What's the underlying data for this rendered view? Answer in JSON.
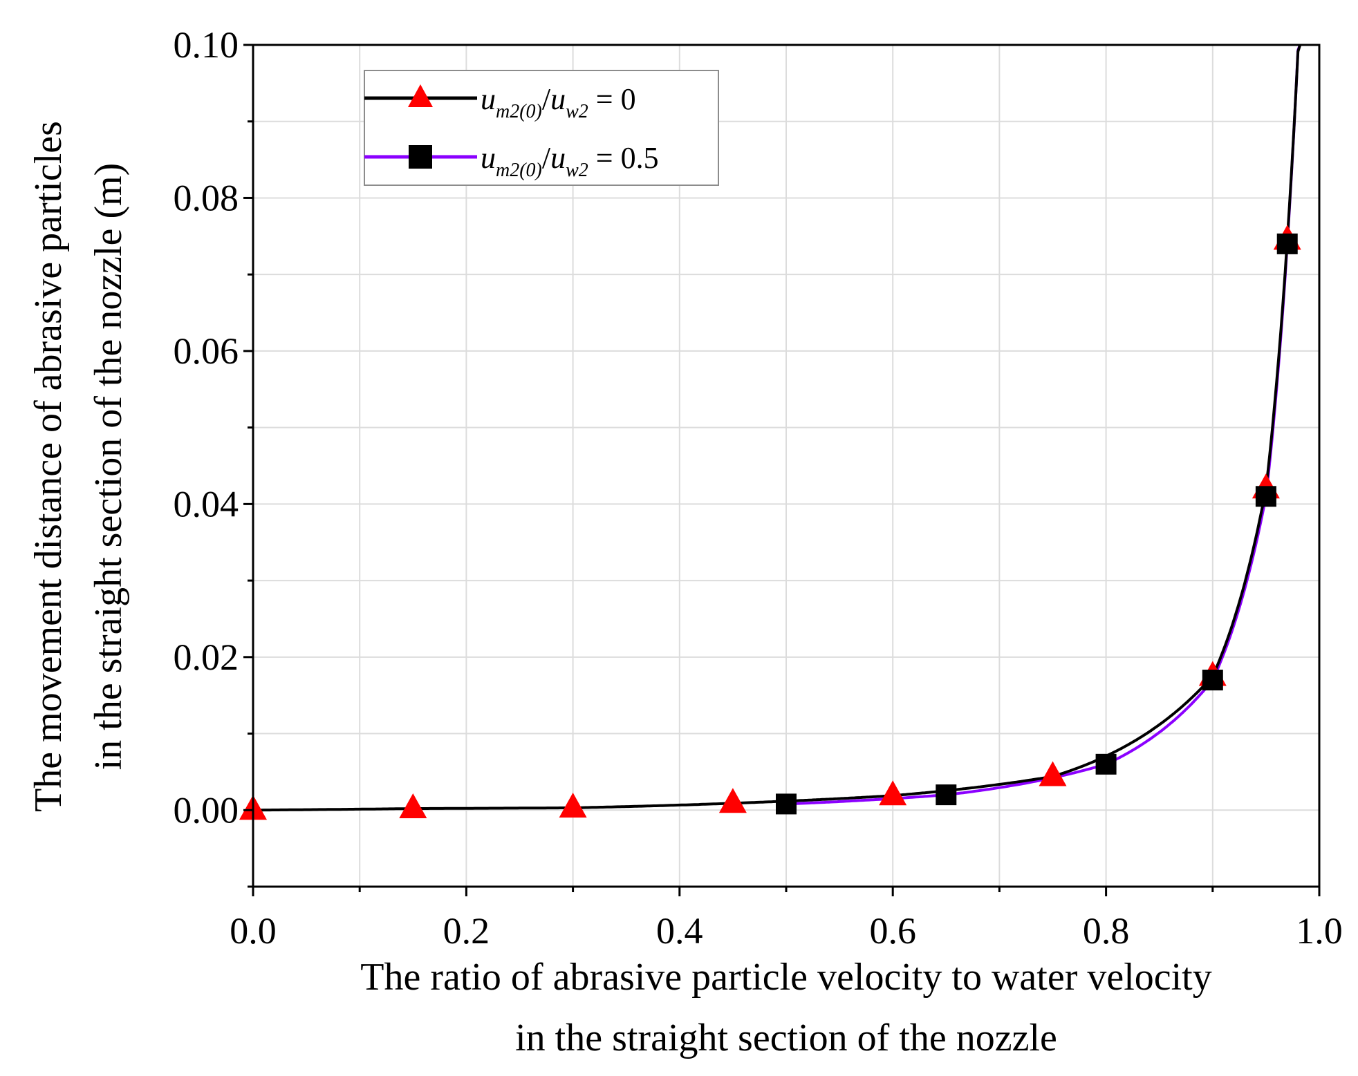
{
  "chart_data": {
    "type": "line",
    "xlabel": [
      "The ratio of abrasive particle velocity to water velocity",
      "in the straight section of the nozzle"
    ],
    "ylabel": [
      "The movement distance of abrasive particles",
      "in the straight section of the nozzle (m)"
    ],
    "xlim": [
      0.0,
      1.0
    ],
    "ylim": [
      -0.01,
      0.1
    ],
    "x_ticks": [
      0.0,
      0.2,
      0.4,
      0.6,
      0.8,
      1.0
    ],
    "x_tick_labels": [
      "0.0",
      "0.2",
      "0.4",
      "0.6",
      "0.8",
      "1.0"
    ],
    "y_ticks": [
      0.0,
      0.02,
      0.04,
      0.06,
      0.08,
      0.1
    ],
    "y_tick_labels": [
      "0.00",
      "0.02",
      "0.04",
      "0.06",
      "0.08",
      "0.10"
    ],
    "grid": true,
    "legend_position": "top-left",
    "series": [
      {
        "name": "u_m2(0)/u_w2 = 0",
        "legend": {
          "u1": "u",
          "s1": "m2(0)",
          "slash": "/",
          "u2": "u",
          "s2": "w2",
          "eq": " = 0"
        },
        "color": "#000000",
        "marker": "triangle",
        "marker_color": "#ff0000",
        "x_start": 0.0,
        "markers": [
          {
            "x": 0.0,
            "y": 0.0
          },
          {
            "x": 0.15,
            "y": 0.0002
          },
          {
            "x": 0.3,
            "y": 0.0003
          },
          {
            "x": 0.45,
            "y": 0.0009
          },
          {
            "x": 0.6,
            "y": 0.0019
          },
          {
            "x": 0.75,
            "y": 0.0044
          },
          {
            "x": 0.9,
            "y": 0.0175
          },
          {
            "x": 0.95,
            "y": 0.042
          },
          {
            "x": 0.97,
            "y": 0.0745
          }
        ]
      },
      {
        "name": "u_m2(0)/u_w2 = 0.5",
        "legend": {
          "u1": "u",
          "s1": "m2(0)",
          "slash": "/",
          "u2": "u",
          "s2": "w2",
          "eq": " = 0.5"
        },
        "color": "#8b00ff",
        "marker": "square",
        "marker_color": "#000000",
        "x_start": 0.5,
        "markers": [
          {
            "x": 0.5,
            "y": 0.0008
          },
          {
            "x": 0.65,
            "y": 0.002
          },
          {
            "x": 0.8,
            "y": 0.006
          },
          {
            "x": 0.9,
            "y": 0.017
          },
          {
            "x": 0.95,
            "y": 0.041
          },
          {
            "x": 0.97,
            "y": 0.074
          }
        ]
      }
    ]
  }
}
